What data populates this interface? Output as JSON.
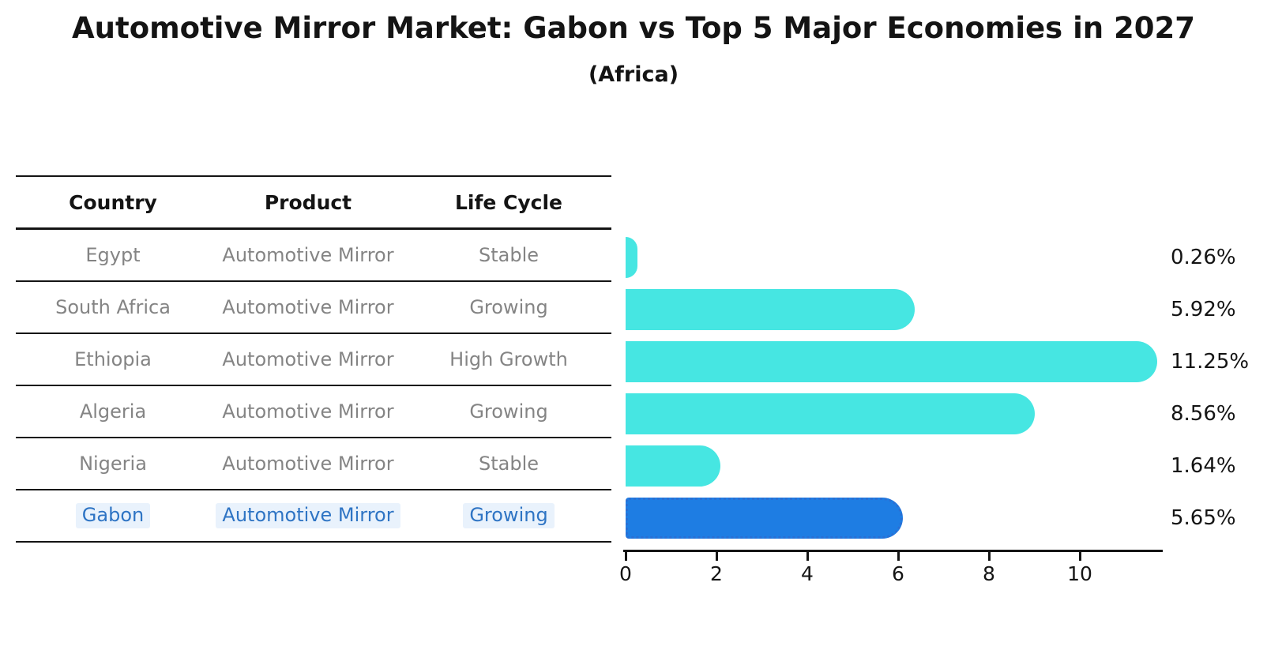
{
  "title": "Automotive Mirror Market: Gabon vs Top 5 Major Economies in 2027",
  "subtitle": "(Africa)",
  "table": {
    "columns": [
      "Country",
      "Product",
      "Life Cycle"
    ],
    "rows": [
      {
        "country": "Egypt",
        "product": "Automotive Mirror",
        "life_cycle": "Stable",
        "highlight": false
      },
      {
        "country": "South Africa",
        "product": "Automotive Mirror",
        "life_cycle": "Growing",
        "highlight": false
      },
      {
        "country": "Ethiopia",
        "product": "Automotive Mirror",
        "life_cycle": "High Growth",
        "highlight": false
      },
      {
        "country": "Algeria",
        "product": "Automotive Mirror",
        "life_cycle": "Growing",
        "highlight": false
      },
      {
        "country": "Nigeria",
        "product": "Automotive Mirror",
        "life_cycle": "Stable",
        "highlight": false
      },
      {
        "country": "Gabon",
        "product": "Automotive Mirror",
        "life_cycle": "Growing",
        "highlight": true
      }
    ]
  },
  "chart_data": {
    "type": "bar",
    "orientation": "horizontal",
    "title": "Automotive Mirror Market: Gabon vs Top 5 Major Economies in 2027 (Africa)",
    "categories": [
      "Egypt",
      "South Africa",
      "Ethiopia",
      "Algeria",
      "Nigeria",
      "Gabon"
    ],
    "values": [
      0.26,
      5.92,
      11.25,
      8.56,
      1.64,
      5.65
    ],
    "value_labels": [
      "0.26%",
      "5.92%",
      "11.25%",
      "8.56%",
      "1.64%",
      "5.65%"
    ],
    "x_ticks": [
      0,
      2,
      4,
      6,
      8,
      10
    ],
    "xlim": [
      0,
      11.8
    ],
    "grid": false,
    "legend": "none",
    "highlight_index": 5
  },
  "colors": {
    "bar_cyan": "#46E6E2",
    "bar_blue": "#1E7DE3",
    "bar_blue_border": "#2A6FD4",
    "highlight_text": "#2E74C4",
    "row_text": "#848484",
    "text": "#141414"
  }
}
